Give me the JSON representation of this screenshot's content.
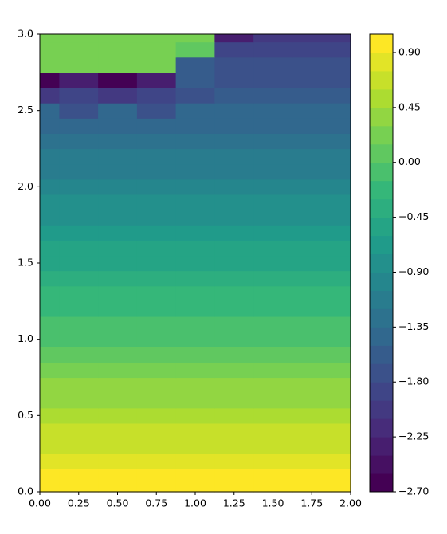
{
  "chart_data": {
    "type": "contourf",
    "colormap": "viridis",
    "x": [
      0,
      0.25,
      0.5,
      0.75,
      1,
      1.25,
      1.5,
      1.75,
      2
    ],
    "y": [
      0,
      0.1,
      0.2,
      0.3,
      0.4,
      0.5,
      0.6,
      0.7,
      0.8,
      0.9,
      1,
      1.1,
      1.2,
      1.3,
      1.4,
      1.5,
      1.6,
      1.7,
      1.8,
      1.9,
      2,
      2.1,
      2.2,
      2.3,
      2.4,
      2.5,
      2.6,
      2.7,
      2.8,
      2.9,
      3
    ],
    "z": [
      [
        1,
        1,
        1,
        1,
        1,
        1,
        1,
        1,
        1
      ],
      [
        0.9,
        0.9,
        0.9,
        0.9,
        0.9,
        0.9,
        0.9,
        0.9,
        0.9
      ],
      [
        0.8,
        0.8,
        0.8,
        0.8,
        0.8,
        0.8,
        0.8,
        0.8,
        0.8
      ],
      [
        0.7,
        0.7,
        0.7,
        0.7,
        0.7,
        0.7,
        0.7,
        0.7,
        0.7
      ],
      [
        0.6,
        0.6,
        0.6,
        0.6,
        0.6,
        0.6,
        0.6,
        0.6,
        0.6
      ],
      [
        0.5,
        0.5,
        0.5,
        0.5,
        0.5,
        0.5,
        0.5,
        0.5,
        0.5
      ],
      [
        0.4,
        0.4,
        0.4,
        0.4,
        0.4,
        0.4,
        0.4,
        0.4,
        0.4
      ],
      [
        0.3,
        0.3,
        0.3,
        0.3,
        0.3,
        0.3,
        0.3,
        0.3,
        0.3
      ],
      [
        0.2,
        0.2,
        0.2,
        0.2,
        0.2,
        0.2,
        0.2,
        0.2,
        0.2
      ],
      [
        0.1,
        0.1,
        0.1,
        0.1,
        0.1,
        0.1,
        0.1,
        0.1,
        0.1
      ],
      [
        -0.01,
        -0.01,
        -0.01,
        -0.01,
        -0.01,
        -0.01,
        -0.01,
        -0.01,
        -0.01
      ],
      [
        -0.1,
        -0.1,
        -0.1,
        -0.1,
        -0.1,
        -0.1,
        -0.1,
        -0.1,
        -0.1
      ],
      [
        -0.2,
        -0.2,
        -0.2,
        -0.2,
        -0.2,
        -0.2,
        -0.2,
        -0.2,
        -0.2
      ],
      [
        -0.3,
        -0.3,
        -0.3,
        -0.3,
        -0.3,
        -0.3,
        -0.3,
        -0.3,
        -0.3
      ],
      [
        -0.4,
        -0.4,
        -0.4,
        -0.4,
        -0.4,
        -0.4,
        -0.4,
        -0.4,
        -0.4
      ],
      [
        -0.5,
        -0.5,
        -0.5,
        -0.5,
        -0.5,
        -0.5,
        -0.5,
        -0.5,
        -0.5
      ],
      [
        -0.6,
        -0.6,
        -0.6,
        -0.6,
        -0.6,
        -0.6,
        -0.6,
        -0.6,
        -0.6
      ],
      [
        -0.7,
        -0.7,
        -0.7,
        -0.7,
        -0.7,
        -0.7,
        -0.7,
        -0.7,
        -0.7
      ],
      [
        -0.8,
        -0.8,
        -0.8,
        -0.8,
        -0.8,
        -0.8,
        -0.8,
        -0.8,
        -0.8
      ],
      [
        -0.9,
        -0.9,
        -0.9,
        -0.9,
        -0.9,
        -0.9,
        -0.9,
        -0.9,
        -0.9
      ],
      [
        -1.0,
        -1.0,
        -1.0,
        -1.0,
        -1.0,
        -1.0,
        -1.0,
        -1.0,
        -1.0
      ],
      [
        -1.1,
        -1.1,
        -1.1,
        -1.1,
        -1.1,
        -1.1,
        -1.1,
        -1.1,
        -1.1
      ],
      [
        -1.2,
        -1.2,
        -1.2,
        -1.2,
        -1.2,
        -1.2,
        -1.2,
        -1.2,
        -1.2
      ],
      [
        -1.3,
        -1.3,
        -1.3,
        -1.3,
        -1.3,
        -1.3,
        -1.3,
        -1.3,
        -1.3
      ],
      [
        -1.4,
        -1.4,
        -1.4,
        -1.4,
        -1.4,
        -1.4,
        -1.4,
        -1.4,
        -1.4
      ],
      [
        -1.5,
        -1.7,
        -1.5,
        -1.7,
        -1.5,
        -1.5,
        -1.5,
        -1.5,
        -1.5
      ],
      [
        -2.0,
        -1.9,
        -2.0,
        -1.9,
        -1.7,
        -1.6,
        -1.6,
        -1.6,
        -1.6
      ],
      [
        -2.6,
        -2.3,
        -2.6,
        -2.4,
        -1.6,
        -1.7,
        -1.7,
        -1.7,
        -1.7
      ],
      [
        0.15,
        0.15,
        0.15,
        0.15,
        -1.6,
        -1.8,
        -1.8,
        -1.8,
        -1.8
      ],
      [
        0.2,
        0.2,
        0.2,
        0.2,
        0.1,
        -1.9,
        -1.9,
        -1.9,
        -1.9
      ],
      [
        0.25,
        0.25,
        0.25,
        0.25,
        0.25,
        -2.4,
        -2.0,
        -2.0,
        -2.0
      ]
    ],
    "levels": [
      -2.7,
      -2.55,
      -2.4,
      -2.25,
      -2.1,
      -1.95,
      -1.8,
      -1.65,
      -1.5,
      -1.35,
      -1.2,
      -1.05,
      -0.9,
      -0.75,
      -0.6,
      -0.45,
      -0.3,
      -0.15,
      0,
      0.15,
      0.3,
      0.45,
      0.6,
      0.75,
      0.9,
      1.05
    ],
    "xlim": [
      0,
      2
    ],
    "ylim": [
      0,
      3
    ],
    "xticks": [
      {
        "value": 0,
        "label": "0.00"
      },
      {
        "value": 0.25,
        "label": "0.25"
      },
      {
        "value": 0.5,
        "label": "0.50"
      },
      {
        "value": 0.75,
        "label": "0.75"
      },
      {
        "value": 1,
        "label": "1.00"
      },
      {
        "value": 1.25,
        "label": "1.25"
      },
      {
        "value": 1.5,
        "label": "1.50"
      },
      {
        "value": 1.75,
        "label": "1.75"
      },
      {
        "value": 2,
        "label": "2.00"
      }
    ],
    "yticks": [
      {
        "value": 0,
        "label": "0.0"
      },
      {
        "value": 0.5,
        "label": "0.5"
      },
      {
        "value": 1,
        "label": "1.0"
      },
      {
        "value": 1.5,
        "label": "1.5"
      },
      {
        "value": 2,
        "label": "2.0"
      },
      {
        "value": 2.5,
        "label": "2.5"
      },
      {
        "value": 3,
        "label": "3.0"
      }
    ],
    "colorbar_ticks": [
      {
        "value": 0.9,
        "label": "0.90"
      },
      {
        "value": 0.45,
        "label": "0.45"
      },
      {
        "value": 0,
        "label": "0.00"
      },
      {
        "value": -0.45,
        "label": "−0.45"
      },
      {
        "value": -0.9,
        "label": "−0.90"
      },
      {
        "value": -1.35,
        "label": "−1.35"
      },
      {
        "value": -1.8,
        "label": "−1.80"
      },
      {
        "value": -2.25,
        "label": "−2.25"
      },
      {
        "value": -2.7,
        "label": "−2.70"
      }
    ]
  }
}
